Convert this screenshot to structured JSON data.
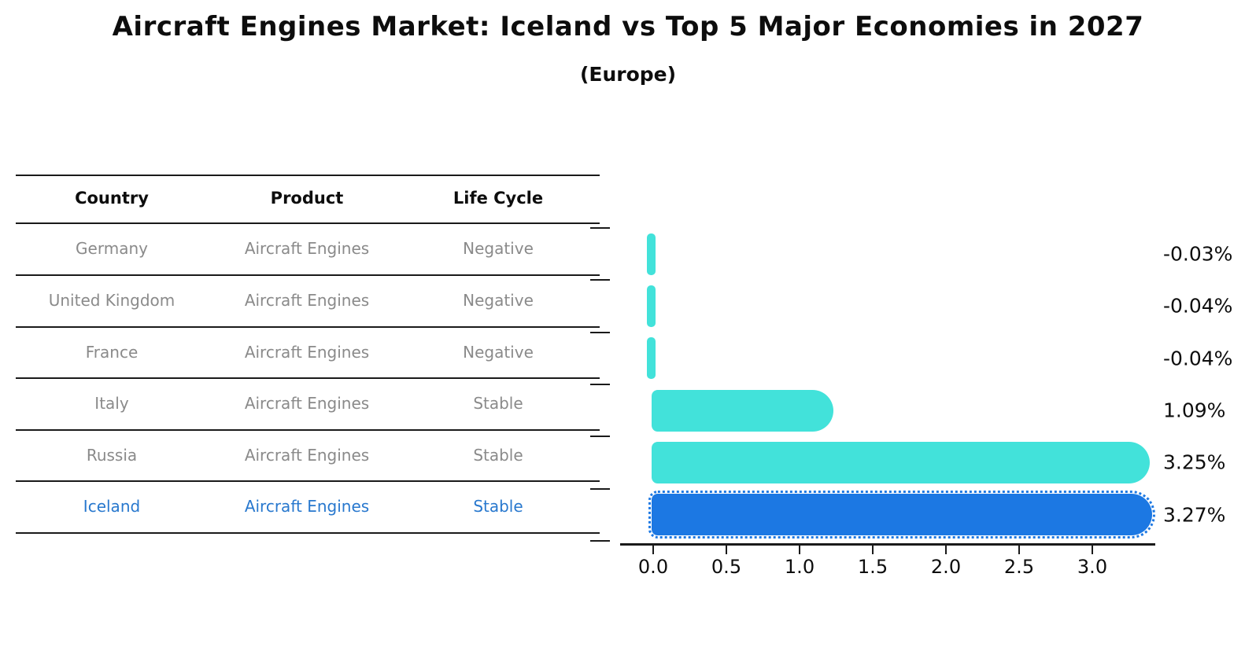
{
  "title": "Aircraft Engines Market: Iceland vs Top 5 Major Economies in 2027",
  "subtitle": "(Europe)",
  "table": {
    "headers": [
      "Country",
      "Product",
      "Life Cycle"
    ],
    "rows": [
      {
        "country": "Germany",
        "product": "Aircraft Engines",
        "life_cycle": "Negative",
        "highlighted": false
      },
      {
        "country": "United Kingdom",
        "product": "Aircraft Engines",
        "life_cycle": "Negative",
        "highlighted": false
      },
      {
        "country": "France",
        "product": "Aircraft Engines",
        "life_cycle": "Negative",
        "highlighted": false
      },
      {
        "country": "Italy",
        "product": "Aircraft Engines",
        "life_cycle": "Stable",
        "highlighted": false
      },
      {
        "country": "Russia",
        "product": "Aircraft Engines",
        "life_cycle": "Stable",
        "highlighted": false
      },
      {
        "country": "Iceland",
        "product": "Aircraft Engines",
        "life_cycle": "Stable",
        "highlighted": true
      }
    ]
  },
  "chart_data": {
    "type": "bar",
    "orientation": "horizontal",
    "categories": [
      "Germany",
      "United Kingdom",
      "France",
      "Italy",
      "Russia",
      "Iceland"
    ],
    "values": [
      -0.03,
      -0.04,
      -0.04,
      1.09,
      3.25,
      3.27
    ],
    "value_labels": [
      "-0.03%",
      "-0.04%",
      "-0.04%",
      "1.09%",
      "3.25%",
      "3.27%"
    ],
    "x_tick_values": [
      0.0,
      0.5,
      1.0,
      1.5,
      2.0,
      2.5,
      3.0
    ],
    "x_tick_labels": [
      "0.0",
      "0.5",
      "1.0",
      "1.5",
      "2.0",
      "2.5",
      "3.0"
    ],
    "xlim": [
      -0.23,
      3.45
    ],
    "grid": false,
    "legend": null,
    "highlight_index": 5,
    "title": "Aircraft Engines Market: Iceland vs Top 5 Major Economies in 2027",
    "xlabel": "",
    "ylabel": ""
  },
  "colors": {
    "bar_default": "#42E2DA",
    "bar_highlight": "#1C78E3",
    "highlight_text": "#2878CE",
    "table_text": "#8A8A8A",
    "heading_text": "#0D0D0D",
    "line": "#1A1A1A"
  }
}
